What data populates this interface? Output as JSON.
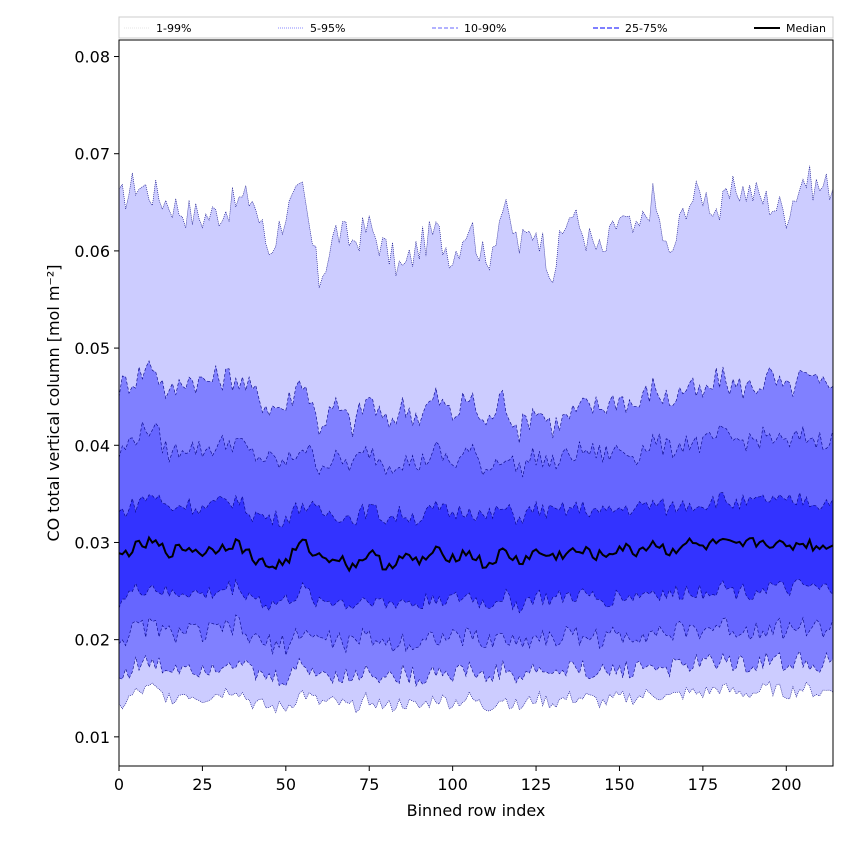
{
  "chart_data": {
    "type": "area",
    "xlabel": "Binned row index",
    "ylabel": "CO total vertical column [mol m⁻²]",
    "xlim": [
      0,
      214
    ],
    "ylim": [
      0.007,
      0.0817
    ],
    "xticks": [
      0,
      25,
      50,
      75,
      100,
      125,
      150,
      175,
      200
    ],
    "yticks": [
      0.01,
      0.02,
      0.03,
      0.04,
      0.05,
      0.06,
      0.07,
      0.08
    ],
    "xtick_labels": [
      "0",
      "25",
      "50",
      "75",
      "100",
      "125",
      "150",
      "175",
      "200"
    ],
    "ytick_labels": [
      "0.01",
      "0.02",
      "0.03",
      "0.04",
      "0.05",
      "0.06",
      "0.07",
      "0.08"
    ],
    "legend_position": "top (above plot, horizontal)",
    "legend": [
      "1-99%",
      "5-95%",
      "10-90%",
      "25-75%",
      "Median"
    ],
    "grid": false,
    "x_anchor_step": 5,
    "series": [
      {
        "name": "1-99% (upper)",
        "color": "#ccccff",
        "values": [
          0.065,
          0.067,
          0.066,
          0.065,
          0.064,
          0.0635,
          0.064,
          0.065,
          0.0655,
          0.06,
          0.064,
          0.066,
          0.057,
          0.062,
          0.061,
          0.0625,
          0.06,
          0.058,
          0.0605,
          0.062,
          0.0595,
          0.063,
          0.0585,
          0.0645,
          0.0605,
          0.0625,
          0.058,
          0.064,
          0.0615,
          0.0595,
          0.0635,
          0.0615,
          0.0655,
          0.059,
          0.065,
          0.066,
          0.064,
          0.0665,
          0.066,
          0.065,
          0.064,
          0.0675,
          0.0665,
          0.067,
          0.068
        ]
      },
      {
        "name": "5-95% (upper)",
        "color": "#8080ff",
        "values": [
          0.046,
          0.047,
          0.0485,
          0.045,
          0.047,
          0.0465,
          0.047,
          0.047,
          0.0455,
          0.044,
          0.044,
          0.047,
          0.042,
          0.044,
          0.042,
          0.045,
          0.042,
          0.044,
          0.043,
          0.045,
          0.043,
          0.045,
          0.042,
          0.045,
          0.0415,
          0.044,
          0.042,
          0.043,
          0.044,
          0.044,
          0.045,
          0.044,
          0.046,
          0.0445,
          0.046,
          0.045,
          0.047,
          0.046,
          0.046,
          0.047,
          0.0455,
          0.047,
          0.046,
          0.0475,
          0.0485
        ]
      },
      {
        "name": "10-90% (upper)",
        "color": "#6666ff",
        "values": [
          0.039,
          0.041,
          0.042,
          0.039,
          0.04,
          0.0395,
          0.04,
          0.0405,
          0.039,
          0.0385,
          0.038,
          0.04,
          0.038,
          0.0385,
          0.038,
          0.0395,
          0.038,
          0.0385,
          0.038,
          0.0395,
          0.038,
          0.0395,
          0.0375,
          0.039,
          0.0375,
          0.039,
          0.038,
          0.039,
          0.0395,
          0.039,
          0.0395,
          0.039,
          0.0405,
          0.0395,
          0.0405,
          0.04,
          0.041,
          0.0405,
          0.0405,
          0.041,
          0.04,
          0.041,
          0.0405,
          0.041,
          0.0425
        ]
      },
      {
        "name": "25-75% (upper)",
        "color": "#3333ff",
        "values": [
          0.033,
          0.034,
          0.035,
          0.0335,
          0.034,
          0.0335,
          0.034,
          0.0345,
          0.033,
          0.0325,
          0.0325,
          0.034,
          0.033,
          0.033,
          0.0325,
          0.0335,
          0.0325,
          0.033,
          0.0325,
          0.0335,
          0.033,
          0.0335,
          0.0325,
          0.0335,
          0.0325,
          0.0335,
          0.033,
          0.0335,
          0.0335,
          0.033,
          0.0335,
          0.0335,
          0.034,
          0.0335,
          0.034,
          0.034,
          0.0345,
          0.034,
          0.034,
          0.0345,
          0.034,
          0.0345,
          0.034,
          0.0345,
          0.035
        ]
      },
      {
        "name": "Median",
        "color": "#000000",
        "values": [
          0.0285,
          0.0295,
          0.03,
          0.029,
          0.0295,
          0.029,
          0.0295,
          0.03,
          0.0285,
          0.0275,
          0.028,
          0.03,
          0.0285,
          0.0285,
          0.0275,
          0.029,
          0.0275,
          0.0285,
          0.028,
          0.029,
          0.0285,
          0.029,
          0.0275,
          0.029,
          0.028,
          0.029,
          0.0285,
          0.029,
          0.029,
          0.0285,
          0.0295,
          0.029,
          0.03,
          0.029,
          0.03,
          0.0295,
          0.03,
          0.0295,
          0.03,
          0.03,
          0.0295,
          0.03,
          0.0295,
          0.03,
          0.0305
        ]
      },
      {
        "name": "25-75% (lower)",
        "color": "#3333ff",
        "values": [
          0.024,
          0.025,
          0.0255,
          0.0245,
          0.025,
          0.0245,
          0.025,
          0.0255,
          0.0245,
          0.0235,
          0.024,
          0.025,
          0.024,
          0.024,
          0.0235,
          0.0245,
          0.0235,
          0.024,
          0.0235,
          0.0245,
          0.024,
          0.0245,
          0.0235,
          0.0245,
          0.0235,
          0.0245,
          0.024,
          0.0245,
          0.0245,
          0.024,
          0.0245,
          0.0245,
          0.025,
          0.0245,
          0.025,
          0.025,
          0.0255,
          0.025,
          0.025,
          0.0255,
          0.025,
          0.0255,
          0.025,
          0.0255,
          0.026
        ]
      },
      {
        "name": "10-90% (lower)",
        "color": "#6666ff",
        "values": [
          0.02,
          0.021,
          0.0215,
          0.0205,
          0.021,
          0.0205,
          0.021,
          0.0215,
          0.02,
          0.0195,
          0.0195,
          0.021,
          0.02,
          0.02,
          0.0195,
          0.0205,
          0.0195,
          0.02,
          0.0195,
          0.0205,
          0.02,
          0.0205,
          0.0195,
          0.0205,
          0.0195,
          0.0205,
          0.02,
          0.0205,
          0.0205,
          0.02,
          0.0205,
          0.0205,
          0.021,
          0.0205,
          0.021,
          0.021,
          0.0215,
          0.021,
          0.021,
          0.0215,
          0.021,
          0.0215,
          0.021,
          0.0215,
          0.022
        ]
      },
      {
        "name": "5-95% (lower)",
        "color": "#8080ff",
        "values": [
          0.016,
          0.0175,
          0.0175,
          0.017,
          0.0175,
          0.017,
          0.0175,
          0.018,
          0.0165,
          0.016,
          0.016,
          0.0175,
          0.0165,
          0.0165,
          0.016,
          0.017,
          0.016,
          0.0165,
          0.016,
          0.017,
          0.0165,
          0.017,
          0.016,
          0.017,
          0.016,
          0.017,
          0.0165,
          0.017,
          0.017,
          0.0165,
          0.017,
          0.017,
          0.0175,
          0.017,
          0.0175,
          0.0175,
          0.018,
          0.0175,
          0.0175,
          0.018,
          0.0175,
          0.018,
          0.0175,
          0.018,
          0.0185
        ]
      },
      {
        "name": "1-99% (lower)",
        "color": "#ccccff",
        "values": [
          0.013,
          0.0145,
          0.015,
          0.014,
          0.0145,
          0.014,
          0.0145,
          0.015,
          0.0135,
          0.013,
          0.013,
          0.0145,
          0.0135,
          0.0135,
          0.013,
          0.014,
          0.013,
          0.0135,
          0.013,
          0.014,
          0.0135,
          0.014,
          0.013,
          0.014,
          0.013,
          0.014,
          0.0135,
          0.014,
          0.014,
          0.0135,
          0.014,
          0.014,
          0.0145,
          0.014,
          0.0145,
          0.0145,
          0.015,
          0.0145,
          0.0145,
          0.015,
          0.0145,
          0.015,
          0.0145,
          0.015,
          0.019
        ]
      }
    ],
    "colors": {
      "band_1_99": "#ccccff",
      "band_5_95": "#8080ff",
      "band_10_90": "#6666ff",
      "band_25_75": "#3333ff",
      "edge": "#000080",
      "median": "#000000"
    }
  }
}
